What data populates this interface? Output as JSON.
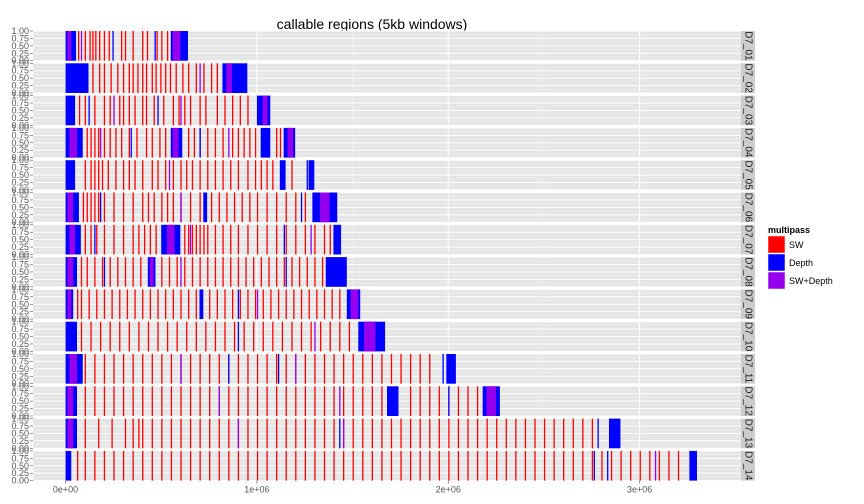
{
  "chart_data": {
    "type": "bar",
    "title": "callable regions (5kb windows)",
    "xlabel": "",
    "ylabel": "",
    "x_ticks": [
      {
        "value": 0,
        "label": "0e+00"
      },
      {
        "value": 1000000,
        "label": "1e+06"
      },
      {
        "value": 2000000,
        "label": "2e+06"
      },
      {
        "value": 3000000,
        "label": "3e+06"
      }
    ],
    "y_ticks": [
      {
        "value": 1.0,
        "label": "1.00"
      },
      {
        "value": 0.75,
        "label": "0.75"
      },
      {
        "value": 0.5,
        "label": "0.50"
      },
      {
        "value": 0.25,
        "label": "0.25"
      },
      {
        "value": 0.0,
        "label": "0.00"
      }
    ],
    "xlim": [
      -170000,
      3530000
    ],
    "ylim": [
      0,
      1
    ],
    "window_size": 5000,
    "grid": true,
    "legend": {
      "title": "multipass",
      "position": "right",
      "items": [
        {
          "name": "SW",
          "color": "#ff0000"
        },
        {
          "name": "Depth",
          "color": "#0000ff"
        },
        {
          "name": "SW+Depth",
          "color": "#9400ee"
        }
      ]
    },
    "facets": [
      {
        "label": "D7_01",
        "length": 640000,
        "depth_blocks": [
          [
            0,
            55000
          ],
          [
            550000,
            640000
          ]
        ],
        "mixed_blocks": [
          [
            10000,
            30000
          ],
          [
            560000,
            600000
          ]
        ],
        "sw_windows": [
          65000,
          100000,
          125000,
          140000,
          155000,
          175000,
          200000,
          225000,
          290000,
          310000,
          350000,
          400000,
          425000,
          475000,
          500000,
          530000
        ],
        "depth_windows": [
          245000,
          465000
        ],
        "mixed_windows": [
          80000
        ]
      },
      {
        "label": "D7_02",
        "length": 950000,
        "depth_blocks": [
          [
            0,
            120000
          ],
          [
            820000,
            950000
          ]
        ],
        "mixed_blocks": [
          [
            840000,
            870000
          ]
        ],
        "sw_windows": [
          140000,
          175000,
          200000,
          235000,
          270000,
          300000,
          330000,
          350000,
          375000,
          400000,
          420000,
          450000,
          470000,
          495000,
          520000,
          545000,
          575000,
          610000,
          640000,
          680000,
          720000,
          760000,
          790000
        ],
        "depth_windows": [],
        "mixed_windows": [
          700000
        ]
      },
      {
        "label": "D7_03",
        "length": 1070000,
        "depth_blocks": [
          [
            0,
            50000
          ],
          [
            1000000,
            1070000
          ]
        ],
        "mixed_blocks": [
          [
            1030000,
            1055000
          ]
        ],
        "sw_windows": [
          70000,
          100000,
          150000,
          200000,
          230000,
          280000,
          300000,
          330000,
          360000,
          400000,
          420000,
          460000,
          510000,
          560000,
          590000,
          620000,
          650000,
          700000,
          730000,
          790000,
          830000,
          870000,
          910000,
          950000
        ],
        "depth_windows": [
          120000,
          480000
        ],
        "mixed_windows": [
          250000,
          600000
        ]
      },
      {
        "label": "D7_04",
        "length": 1200000,
        "depth_blocks": [
          [
            0,
            90000
          ],
          [
            550000,
            610000
          ],
          [
            1020000,
            1070000
          ],
          [
            1140000,
            1200000
          ]
        ],
        "mixed_blocks": [
          [
            20000,
            60000
          ],
          [
            560000,
            590000
          ],
          [
            1160000,
            1190000
          ]
        ],
        "sw_windows": [
          110000,
          130000,
          150000,
          170000,
          200000,
          230000,
          260000,
          290000,
          330000,
          370000,
          420000,
          450000,
          490000,
          520000,
          640000,
          670000,
          700000,
          740000,
          780000,
          820000,
          870000,
          900000,
          930000,
          960000,
          990000,
          1100000,
          1120000
        ],
        "depth_windows": [
          340000,
          700000
        ],
        "mixed_windows": [
          180000,
          850000
        ]
      },
      {
        "label": "D7_05",
        "length": 1300000,
        "depth_blocks": [
          [
            0,
            50000
          ],
          [
            1120000,
            1150000
          ],
          [
            1270000,
            1300000
          ]
        ],
        "mixed_blocks": [],
        "sw_windows": [
          100000,
          130000,
          150000,
          170000,
          190000,
          220000,
          260000,
          300000,
          330000,
          360000,
          400000,
          450000,
          480000,
          520000,
          560000,
          600000,
          630000,
          660000,
          700000,
          740000,
          780000,
          820000,
          860000,
          900000,
          950000,
          990000,
          1020000,
          1050000,
          1080000,
          1180000
        ],
        "depth_windows": [
          1260000
        ],
        "mixed_windows": [
          540000
        ]
      },
      {
        "label": "D7_06",
        "length": 1420000,
        "depth_blocks": [
          [
            0,
            70000
          ],
          [
            720000,
            740000
          ],
          [
            1290000,
            1420000
          ]
        ],
        "mixed_blocks": [
          [
            10000,
            40000
          ],
          [
            1330000,
            1380000
          ]
        ],
        "sw_windows": [
          90000,
          110000,
          130000,
          150000,
          170000,
          200000,
          250000,
          300000,
          350000,
          400000,
          430000,
          460000,
          500000,
          530000,
          560000,
          600000,
          650000,
          700000,
          760000,
          800000,
          840000,
          880000,
          920000,
          960000,
          1000000,
          1050000,
          1100000,
          1150000,
          1200000,
          1250000
        ],
        "depth_windows": [
          180000,
          1230000
        ],
        "mixed_windows": [
          600000
        ]
      },
      {
        "label": "D7_07",
        "length": 1440000,
        "depth_blocks": [
          [
            0,
            80000
          ],
          [
            500000,
            600000
          ],
          [
            1400000,
            1440000
          ]
        ],
        "mixed_blocks": [
          [
            20000,
            50000
          ],
          [
            530000,
            570000
          ]
        ],
        "sw_windows": [
          100000,
          130000,
          160000,
          200000,
          250000,
          300000,
          350000,
          380000,
          410000,
          440000,
          470000,
          620000,
          640000,
          660000,
          680000,
          700000,
          720000,
          740000,
          780000,
          820000,
          860000,
          900000,
          950000,
          1000000,
          1050000,
          1100000,
          1150000,
          1200000,
          1250000,
          1300000,
          1350000,
          1380000
        ],
        "depth_windows": [
          150000,
          1140000
        ],
        "mixed_windows": [
          650000,
          1280000
        ]
      },
      {
        "label": "D7_08",
        "length": 1470000,
        "depth_blocks": [
          [
            0,
            60000
          ],
          [
            430000,
            470000
          ],
          [
            1360000,
            1470000
          ]
        ],
        "mixed_blocks": [
          [
            10000,
            40000
          ],
          [
            440000,
            460000
          ]
        ],
        "sw_windows": [
          80000,
          110000,
          150000,
          190000,
          230000,
          270000,
          310000,
          350000,
          390000,
          500000,
          540000,
          580000,
          620000,
          660000,
          700000,
          740000,
          780000,
          820000,
          860000,
          900000,
          940000,
          980000,
          1020000,
          1060000,
          1100000,
          1140000,
          1180000,
          1220000,
          1260000,
          1300000,
          1340000
        ],
        "depth_windows": [
          200000,
          1150000
        ],
        "mixed_windows": [
          600000
        ]
      },
      {
        "label": "D7_09",
        "length": 1540000,
        "depth_blocks": [
          [
            0,
            40000
          ],
          [
            700000,
            720000
          ],
          [
            1470000,
            1540000
          ]
        ],
        "mixed_blocks": [
          [
            10000,
            30000
          ],
          [
            1490000,
            1530000
          ]
        ],
        "sw_windows": [
          60000,
          80000,
          120000,
          160000,
          200000,
          240000,
          280000,
          320000,
          360000,
          400000,
          440000,
          480000,
          520000,
          560000,
          600000,
          640000,
          680000,
          750000,
          790000,
          830000,
          870000,
          910000,
          950000,
          990000,
          1030000,
          1070000,
          1110000,
          1150000,
          1190000,
          1230000,
          1270000,
          1310000,
          1350000,
          1390000,
          1430000
        ],
        "depth_windows": [
          900000
        ],
        "mixed_windows": [
          1000000
        ]
      },
      {
        "label": "D7_10",
        "length": 1670000,
        "depth_blocks": [
          [
            0,
            60000
          ],
          [
            1530000,
            1670000
          ]
        ],
        "mixed_blocks": [
          [
            1560000,
            1620000
          ]
        ],
        "sw_windows": [
          80000,
          130000,
          180000,
          230000,
          280000,
          330000,
          380000,
          430000,
          480000,
          530000,
          580000,
          630000,
          680000,
          730000,
          780000,
          830000,
          880000,
          930000,
          980000,
          1030000,
          1080000,
          1130000,
          1180000,
          1230000,
          1280000,
          1330000,
          1380000,
          1430000,
          1480000
        ],
        "depth_windows": [
          900000
        ],
        "mixed_windows": [
          1300000
        ]
      },
      {
        "label": "D7_11",
        "length": 2040000,
        "depth_blocks": [
          [
            0,
            90000
          ],
          [
            1990000,
            2040000
          ]
        ],
        "mixed_blocks": [
          [
            20000,
            60000
          ]
        ],
        "sw_windows": [
          100000,
          150000,
          200000,
          250000,
          300000,
          350000,
          400000,
          450000,
          500000,
          550000,
          600000,
          650000,
          700000,
          750000,
          800000,
          850000,
          900000,
          950000,
          1000000,
          1050000,
          1100000,
          1150000,
          1200000,
          1250000,
          1300000,
          1350000,
          1400000,
          1450000,
          1500000,
          1550000,
          1600000,
          1650000,
          1700000,
          1750000,
          1800000,
          1850000,
          1900000
        ],
        "depth_windows": [
          850000,
          1110000,
          1970000
        ],
        "mixed_windows": [
          600000,
          1200000
        ]
      },
      {
        "label": "D7_12",
        "length": 2270000,
        "depth_blocks": [
          [
            0,
            60000
          ],
          [
            1680000,
            1740000
          ],
          [
            2180000,
            2270000
          ]
        ],
        "mixed_blocks": [
          [
            10000,
            40000
          ],
          [
            2200000,
            2250000
          ]
        ],
        "sw_windows": [
          100000,
          150000,
          200000,
          250000,
          300000,
          350000,
          400000,
          450000,
          500000,
          550000,
          600000,
          650000,
          700000,
          750000,
          800000,
          850000,
          900000,
          950000,
          1000000,
          1050000,
          1100000,
          1150000,
          1200000,
          1250000,
          1300000,
          1350000,
          1400000,
          1450000,
          1500000,
          1550000,
          1600000,
          1650000,
          1800000,
          1850000,
          1900000,
          1950000,
          2000000,
          2050000,
          2100000,
          2150000
        ],
        "depth_windows": [
          2000000
        ],
        "mixed_windows": [
          800000,
          1430000
        ]
      },
      {
        "label": "D7_13",
        "length": 2900000,
        "depth_blocks": [
          [
            0,
            60000
          ],
          [
            2840000,
            2900000
          ]
        ],
        "mixed_blocks": [
          [
            10000,
            40000
          ]
        ],
        "sw_windows": [
          100000,
          170000,
          240000,
          310000,
          350000,
          380000,
          400000,
          450000,
          500000,
          550000,
          600000,
          650000,
          700000,
          750000,
          800000,
          850000,
          900000,
          950000,
          1000000,
          1050000,
          1100000,
          1150000,
          1200000,
          1250000,
          1300000,
          1350000,
          1400000,
          1450000,
          1500000,
          1550000,
          1600000,
          1650000,
          1700000,
          1750000,
          1800000,
          1850000,
          1900000,
          1950000,
          2000000,
          2050000,
          2100000,
          2150000,
          2200000,
          2250000,
          2300000,
          2350000,
          2400000,
          2450000,
          2500000,
          2550000,
          2600000,
          2650000,
          2700000,
          2750000
        ],
        "depth_windows": [
          1430000,
          2780000
        ],
        "mixed_windows": [
          900000,
          1450000
        ]
      },
      {
        "label": "D7_14",
        "length": 3300000,
        "depth_blocks": [
          [
            0,
            30000
          ],
          [
            3260000,
            3300000
          ]
        ],
        "mixed_blocks": [],
        "sw_windows": [
          60000,
          100000,
          150000,
          200000,
          250000,
          300000,
          350000,
          400000,
          450000,
          500000,
          550000,
          600000,
          650000,
          700000,
          750000,
          800000,
          850000,
          900000,
          950000,
          1000000,
          1050000,
          1100000,
          1150000,
          1200000,
          1250000,
          1300000,
          1350000,
          1400000,
          1450000,
          1500000,
          1550000,
          1600000,
          1650000,
          1700000,
          1750000,
          1800000,
          1850000,
          1900000,
          1950000,
          2000000,
          2050000,
          2100000,
          2150000,
          2200000,
          2250000,
          2300000,
          2350000,
          2400000,
          2450000,
          2500000,
          2550000,
          2600000,
          2650000,
          2700000,
          2750000,
          2800000,
          2850000,
          2900000,
          2950000,
          3000000,
          3050000,
          3100000,
          3150000,
          3200000
        ],
        "depth_windows": [
          2760000,
          2830000
        ],
        "mixed_windows": [
          3080000
        ]
      }
    ]
  }
}
